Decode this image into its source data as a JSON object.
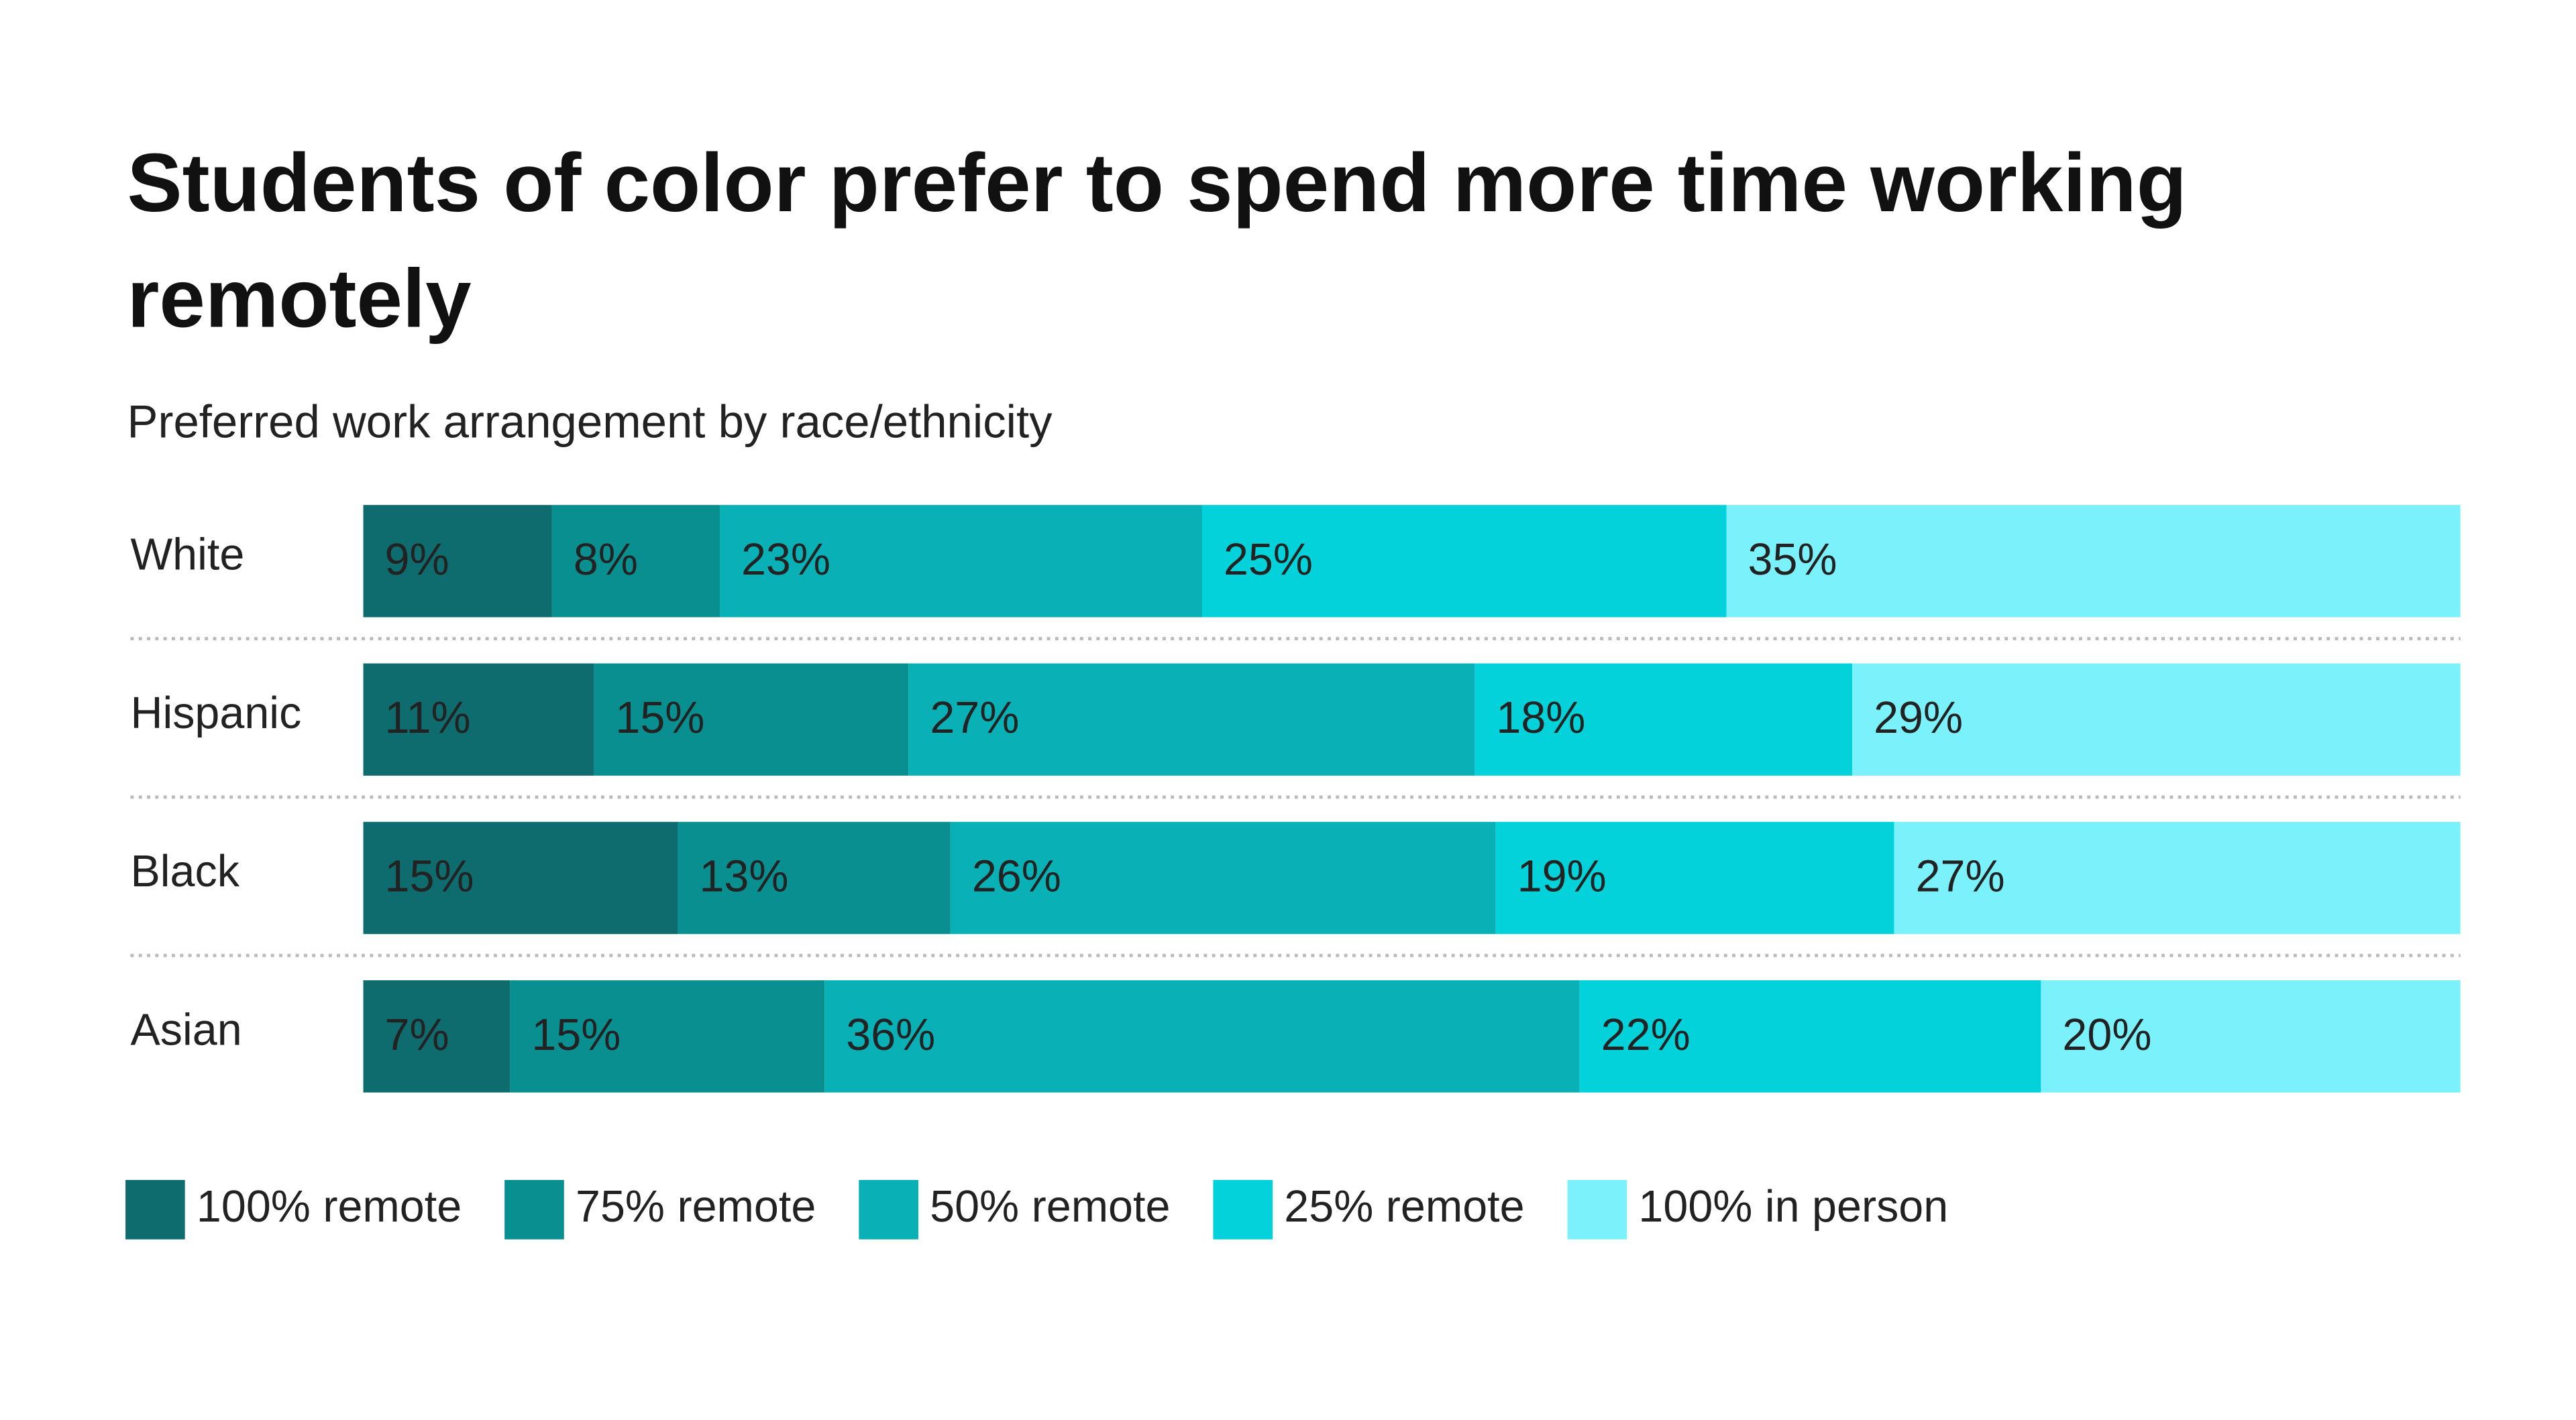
{
  "chart_data": {
    "type": "stacked-bar-horizontal",
    "title": "Students of color prefer to spend more time working remotely",
    "subtitle": "Preferred work arrangement by race/ethnicity",
    "categories": [
      "White",
      "Hispanic",
      "Black",
      "Asian"
    ],
    "xlim": [
      0,
      100
    ],
    "series": [
      {
        "name": "100% remote",
        "color": "#0e6b6e",
        "values": [
          9,
          11,
          15,
          7
        ],
        "value_labels": [
          "9%",
          "11%",
          "15%",
          "7%"
        ]
      },
      {
        "name": "75% remote",
        "color": "#0a8f91",
        "values": [
          8,
          15,
          13,
          15
        ],
        "value_labels": [
          "8%",
          "15%",
          "13%",
          "15%"
        ]
      },
      {
        "name": "50% remote",
        "color": "#09b0b5",
        "values": [
          23,
          27,
          26,
          36
        ],
        "value_labels": [
          "23%",
          "27%",
          "26%",
          "36%"
        ]
      },
      {
        "name": "25% remote",
        "color": "#03d2da",
        "values": [
          25,
          18,
          19,
          22
        ],
        "value_labels": [
          "25%",
          "18%",
          "19%",
          "22%"
        ]
      },
      {
        "name": "100% in person",
        "color": "#7af1fb",
        "values": [
          35,
          29,
          27,
          20
        ],
        "value_labels": [
          "35%",
          "29%",
          "27%",
          "20%"
        ]
      }
    ],
    "legend": "bottom"
  }
}
